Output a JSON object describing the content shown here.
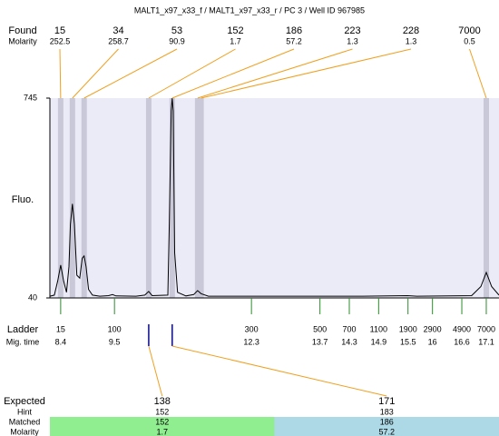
{
  "header": {
    "title": "MALT1_x97_x33_f / MALT1_x97_x33_r / PC 3 / Well ID 967985"
  },
  "chart_data": {
    "type": "line",
    "y_label": "Fluo.",
    "ylim": [
      40,
      745
    ],
    "yticks": [
      40,
      745
    ],
    "xlim": [
      8.18,
      17.36
    ],
    "x": [
      8.18,
      8.27,
      8.34,
      8.4,
      8.46,
      8.52,
      8.57,
      8.6,
      8.64,
      8.68,
      8.73,
      8.79,
      8.84,
      8.88,
      8.92,
      8.97,
      9.05,
      9.2,
      9.38,
      9.46,
      9.53,
      9.94,
      10.12,
      10.2,
      10.27,
      10.59,
      10.62,
      10.66,
      10.68,
      10.7,
      10.73,
      10.79,
      10.96,
      11.12,
      11.2,
      11.27,
      11.42,
      12.73,
      14.57,
      15.49,
      15.68,
      16.8,
      16.99,
      17.1,
      17.21,
      17.36
    ],
    "values": [
      46,
      50,
      100,
      156,
      100,
      60,
      150,
      300,
      372,
      300,
      120,
      110,
      180,
      188,
      150,
      70,
      50,
      46,
      48,
      52,
      47,
      46,
      50,
      63,
      48,
      50,
      300,
      700,
      745,
      700,
      200,
      60,
      47,
      52,
      66,
      55,
      46,
      46,
      46,
      48,
      46,
      48,
      80,
      130,
      80,
      50
    ],
    "color": "#000000",
    "found": {
      "label": "Found",
      "sublabel": "Molarity",
      "sizes": [
        15,
        34,
        53,
        152,
        186,
        223,
        228,
        7000
      ],
      "molarity": [
        252.5,
        258.7,
        90.9,
        1.7,
        57.2,
        1.3,
        1.3,
        0.5
      ],
      "times": [
        8.4,
        8.64,
        8.88,
        10.2,
        10.68,
        11.2,
        11.27,
        17.1
      ]
    },
    "ladder": {
      "label": "Ladder",
      "sublabel": "Mig. time",
      "sizes": [
        15,
        100,
        300,
        500,
        700,
        1100,
        1900,
        2900,
        4900,
        7000
      ],
      "times": [
        8.4,
        9.5,
        12.3,
        13.7,
        14.3,
        14.9,
        15.5,
        16,
        16.6,
        17.1
      ]
    },
    "expected": {
      "label": "Expected",
      "row_labels": [
        "Hint",
        "Matched",
        "Molarity"
      ],
      "values": [
        138,
        171
      ],
      "hint": [
        152,
        183
      ],
      "matched": [
        152,
        186
      ],
      "molarity": [
        1.7,
        57.2
      ],
      "colors": [
        "#90ee90",
        "#add8e6"
      ]
    }
  }
}
